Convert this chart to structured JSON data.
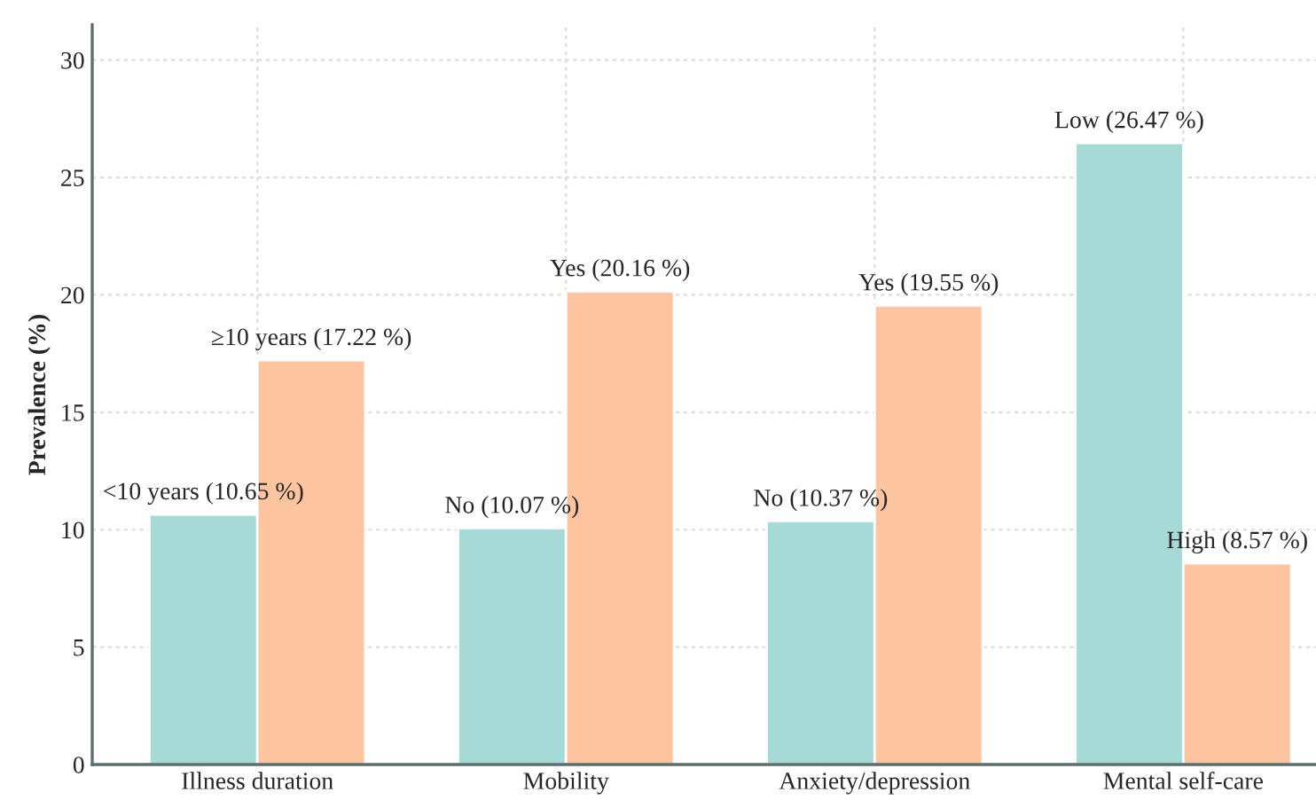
{
  "chart_data": {
    "type": "bar",
    "ylabel": "Prevalence (%)",
    "categories": [
      "Illness duration",
      "Mobility",
      "Anxiety/depression",
      "Mental self-care"
    ],
    "series": [
      {
        "color": "#a6dad7",
        "values": [
          10.65,
          10.07,
          10.37,
          26.47
        ],
        "value_labels": [
          "<10 years (10.65 %)",
          "No (10.07 %)",
          "No (10.37 %)",
          "Low (26.47 %)"
        ]
      },
      {
        "color": "#fdc4a0",
        "values": [
          17.22,
          20.16,
          19.55,
          8.57
        ],
        "value_labels": [
          "≥10 years (17.22 %)",
          "Yes (20.16 %)",
          "Yes (19.55 %)",
          "High (8.57 %)"
        ]
      }
    ],
    "ylim": [
      0,
      31.5
    ],
    "yticks": [
      0,
      5,
      10,
      15,
      20,
      25,
      30
    ],
    "grid": true,
    "legend": false
  }
}
